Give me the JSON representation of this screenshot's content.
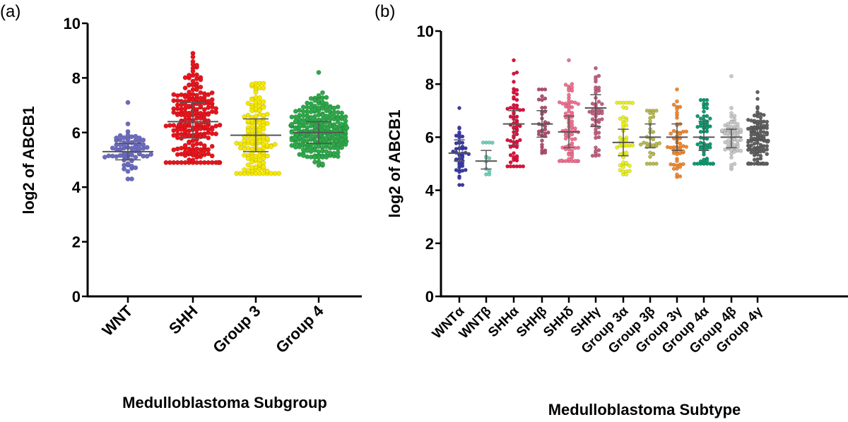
{
  "chart_data": [
    {
      "type": "scatter",
      "panel_label": "(a)",
      "title": "",
      "xlabel": "Medulloblastoma Subgroup",
      "ylabel": "log2 of ABCB1",
      "ylim": [
        0,
        10
      ],
      "yticks": [
        "0",
        "2",
        "4",
        "6",
        "8",
        "10"
      ],
      "grid": false,
      "categories": [
        "WNT",
        "SHH",
        "Group 3",
        "Group 4"
      ],
      "series": [
        {
          "name": "WNT",
          "median": 5.3,
          "q1": 5.0,
          "q3": 5.6,
          "min": 4.3,
          "max": 7.1,
          "n": 70,
          "color": "#6b6bc0"
        },
        {
          "name": "SHH",
          "median": 6.4,
          "q1": 5.8,
          "q3": 7.1,
          "min": 4.9,
          "max": 8.9,
          "n": 220,
          "color": "#e8141c"
        },
        {
          "name": "Group 3",
          "median": 5.9,
          "q1": 5.3,
          "q3": 6.5,
          "min": 4.5,
          "max": 7.8,
          "n": 140,
          "color": "#f5e800"
        },
        {
          "name": "Group 4",
          "median": 6.0,
          "q1": 5.6,
          "q3": 6.4,
          "min": 4.8,
          "max": 8.2,
          "n": 260,
          "color": "#2ea84a"
        }
      ]
    },
    {
      "type": "scatter",
      "panel_label": "(b)",
      "title": "",
      "xlabel": "Medulloblastoma Subtype",
      "ylabel": "log2 of ABCB1",
      "ylim": [
        0,
        10
      ],
      "yticks": [
        "0",
        "2",
        "4",
        "6",
        "8",
        "10"
      ],
      "grid": false,
      "categories": [
        "WNTα",
        "WNTβ",
        "SHHα",
        "SHHβ",
        "SHHδ",
        "SHHγ",
        "Group 3α",
        "Group 3β",
        "Group 3γ",
        "Group 4α",
        "Group 4β",
        "Group 4γ"
      ],
      "series": [
        {
          "name": "WNTα",
          "median": 5.4,
          "q1": 5.1,
          "q3": 5.9,
          "min": 4.2,
          "max": 7.1,
          "n": 45,
          "color": "#3a3aa8"
        },
        {
          "name": "WNTβ",
          "median": 5.1,
          "q1": 4.8,
          "q3": 5.5,
          "min": 4.6,
          "max": 5.8,
          "n": 12,
          "color": "#6fd0b8"
        },
        {
          "name": "SHHα",
          "median": 6.5,
          "q1": 5.7,
          "q3": 7.0,
          "min": 4.9,
          "max": 8.9,
          "n": 65,
          "color": "#e0103c"
        },
        {
          "name": "SHHβ",
          "median": 6.5,
          "q1": 6.0,
          "q3": 7.0,
          "min": 5.4,
          "max": 7.8,
          "n": 35,
          "color": "#b05070"
        },
        {
          "name": "SHHδ",
          "median": 6.2,
          "q1": 5.6,
          "q3": 6.8,
          "min": 5.1,
          "max": 8.9,
          "n": 80,
          "color": "#f07090"
        },
        {
          "name": "SHHγ",
          "median": 7.1,
          "q1": 6.4,
          "q3": 7.6,
          "min": 5.3,
          "max": 8.6,
          "n": 50,
          "color": "#c06080"
        },
        {
          "name": "Group 3α",
          "median": 5.8,
          "q1": 5.3,
          "q3": 6.3,
          "min": 4.6,
          "max": 7.3,
          "n": 50,
          "color": "#e8f020"
        },
        {
          "name": "Group 3β",
          "median": 6.0,
          "q1": 5.6,
          "q3": 6.5,
          "min": 5.0,
          "max": 7.0,
          "n": 35,
          "color": "#b8b850"
        },
        {
          "name": "Group 3γ",
          "median": 6.0,
          "q1": 5.5,
          "q3": 6.5,
          "min": 4.5,
          "max": 7.8,
          "n": 55,
          "color": "#f08830"
        },
        {
          "name": "Group 4α",
          "median": 6.0,
          "q1": 5.5,
          "q3": 6.6,
          "min": 5.0,
          "max": 7.4,
          "n": 60,
          "color": "#109870"
        },
        {
          "name": "Group 4β",
          "median": 6.0,
          "q1": 5.6,
          "q3": 6.3,
          "min": 4.8,
          "max": 8.3,
          "n": 70,
          "color": "#c8c8c8"
        },
        {
          "name": "Group 4γ",
          "median": 5.9,
          "q1": 5.5,
          "q3": 6.4,
          "min": 5.0,
          "max": 7.7,
          "n": 110,
          "color": "#606060"
        }
      ]
    }
  ]
}
